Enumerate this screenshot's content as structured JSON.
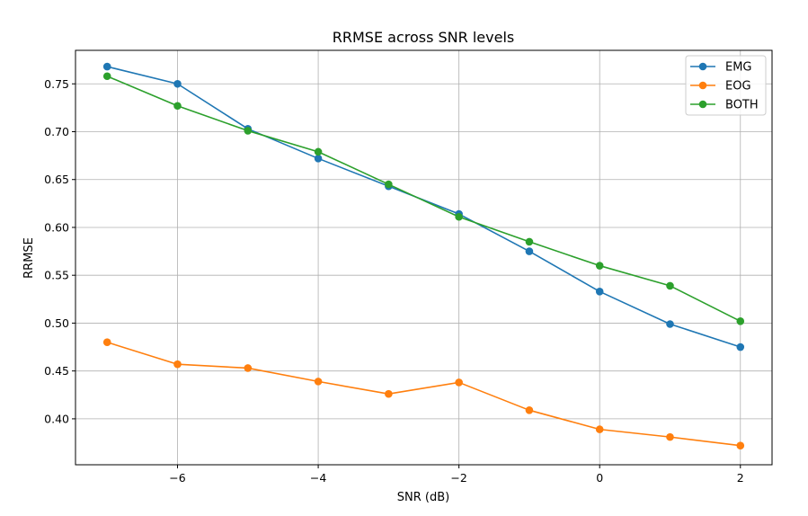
{
  "chart_data": {
    "type": "line",
    "title": "RRMSE across SNR levels",
    "xlabel": "SNR (dB)",
    "ylabel": "RRMSE",
    "x": [
      -7,
      -6,
      -5,
      -4,
      -3,
      -2,
      -1,
      0,
      1,
      2
    ],
    "xlim": [
      -7.45,
      2.45
    ],
    "ylim": [
      0.352,
      0.785
    ],
    "xticks": [
      -6,
      -4,
      -2,
      0,
      2
    ],
    "xtick_labels": [
      "−6",
      "−4",
      "−2",
      "0",
      "2"
    ],
    "yticks": [
      0.4,
      0.45,
      0.5,
      0.55,
      0.6,
      0.65,
      0.7,
      0.75
    ],
    "ytick_labels": [
      "0.40",
      "0.45",
      "0.50",
      "0.55",
      "0.60",
      "0.65",
      "0.70",
      "0.75"
    ],
    "grid": true,
    "legend_position": "top-right",
    "series": [
      {
        "name": "EMG",
        "color": "#1f77b4",
        "values": [
          0.768,
          0.75,
          0.703,
          0.672,
          0.643,
          0.614,
          0.575,
          0.533,
          0.499,
          0.475
        ]
      },
      {
        "name": "EOG",
        "color": "#ff7f0e",
        "values": [
          0.48,
          0.457,
          0.453,
          0.439,
          0.426,
          0.438,
          0.409,
          0.389,
          0.381,
          0.372
        ]
      },
      {
        "name": "BOTH",
        "color": "#2ca02c",
        "values": [
          0.758,
          0.727,
          0.701,
          0.679,
          0.645,
          0.611,
          0.585,
          0.56,
          0.539,
          0.502
        ]
      }
    ]
  }
}
